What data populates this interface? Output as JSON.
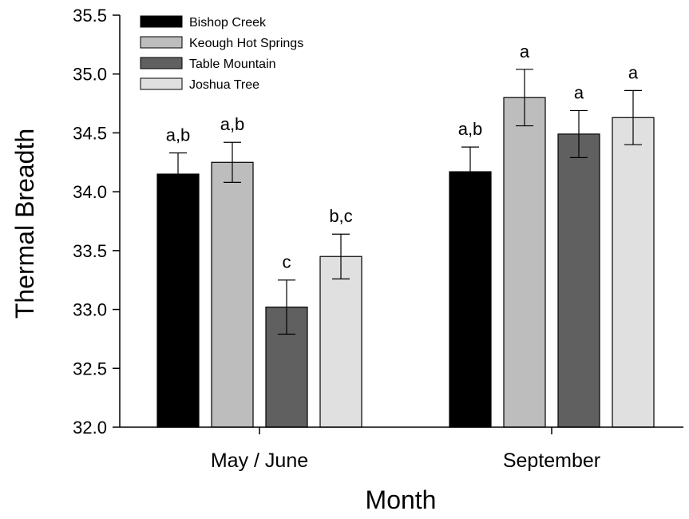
{
  "chart_data": {
    "type": "bar",
    "xlabel": "Month",
    "ylabel": "Thermal Breadth",
    "ylim": [
      32.0,
      35.5
    ],
    "yticks": [
      "32.0",
      "32.5",
      "33.0",
      "33.5",
      "34.0",
      "34.5",
      "35.0",
      "35.5"
    ],
    "categories": [
      "May / June",
      "September"
    ],
    "legend_position": "top-left",
    "series": [
      {
        "name": "Bishop Creek",
        "color": "#000000",
        "values": [
          34.15,
          34.17
        ],
        "errors": [
          0.18,
          0.21
        ],
        "labels": [
          "a,b",
          "a,b"
        ]
      },
      {
        "name": "Keough Hot Springs",
        "color": "#bdbdbd",
        "values": [
          34.25,
          34.8
        ],
        "errors": [
          0.17,
          0.24
        ],
        "labels": [
          "a,b",
          "a"
        ]
      },
      {
        "name": "Table Mountain",
        "color": "#606060",
        "values": [
          33.02,
          34.49
        ],
        "errors": [
          0.23,
          0.2
        ],
        "labels": [
          "c",
          "a"
        ]
      },
      {
        "name": "Joshua Tree",
        "color": "#e0e0e0",
        "values": [
          33.45,
          34.63
        ],
        "errors": [
          0.19,
          0.23
        ],
        "labels": [
          "b,c",
          "a"
        ]
      }
    ]
  }
}
